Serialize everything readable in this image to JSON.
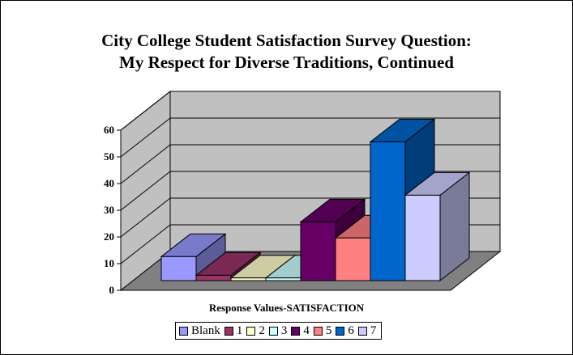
{
  "chart_data": {
    "type": "bar",
    "title_lines": [
      "City College Student Satisfaction Survey Question:",
      "My Respect for Diverse Traditions, Continued"
    ],
    "xlabel": "Response Values-SATISFACTION",
    "ylabel": "",
    "ylim": [
      0,
      60
    ],
    "yticks": [
      "0",
      "10",
      "20",
      "30",
      "40",
      "50",
      "60"
    ],
    "grid": true,
    "legend_position": "bottom",
    "series": [
      {
        "name": "Blank",
        "value": 9,
        "color": "#9999ff"
      },
      {
        "name": "1",
        "value": 2,
        "color": "#993366"
      },
      {
        "name": "2",
        "value": 1,
        "color": "#ffffcc"
      },
      {
        "name": "3",
        "value": 1,
        "color": "#ccffff"
      },
      {
        "name": "4",
        "value": 22,
        "color": "#660066"
      },
      {
        "name": "5",
        "value": 16,
        "color": "#ff8080"
      },
      {
        "name": "6",
        "value": 52,
        "color": "#0066cc"
      },
      {
        "name": "7",
        "value": 32,
        "color": "#ccccff"
      }
    ]
  }
}
